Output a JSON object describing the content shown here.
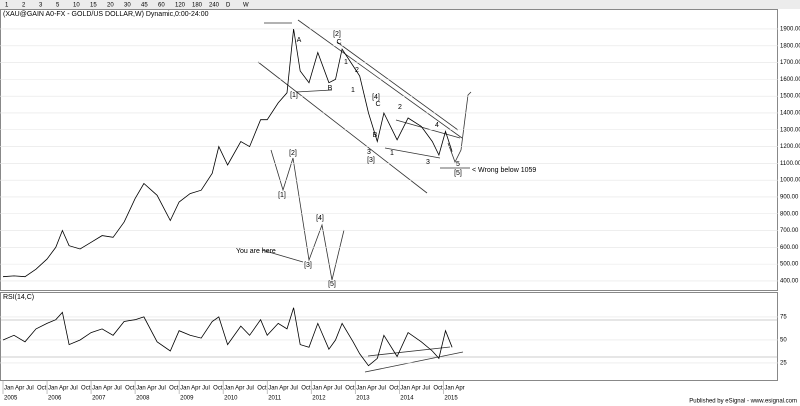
{
  "toolbar": [
    "1",
    "2",
    "3",
    "5",
    "10",
    "15",
    "20",
    "30",
    "45",
    "60",
    "120",
    "180",
    "240",
    "D",
    "W"
  ],
  "annotations": [
    "A",
    "[1]",
    "B",
    "[2]",
    "C",
    "1",
    "2",
    "1",
    "[4]",
    "C",
    "B",
    "3",
    "[3]",
    "1",
    "2",
    "3",
    "4",
    "5",
    "[5]",
    "< Wrong below 1059",
    "[1]",
    "[2]",
    "[4]",
    "[3]",
    "[5]",
    "You are here"
  ],
  "footer": "Published by eSignal - www.esignal.com",
  "chart_data": [
    {
      "type": "line",
      "title": "(XAU@GAIN A0-FX - GOLD/US DOLLAR,W) Dynamic,0:00-24:00",
      "color": "#000000",
      "x": [
        2005.0,
        2005.25,
        2005.5,
        2005.75,
        2006.0,
        2006.2,
        2006.35,
        2006.5,
        2006.75,
        2007.0,
        2007.25,
        2007.5,
        2007.75,
        2008.0,
        2008.2,
        2008.5,
        2008.8,
        2009.0,
        2009.25,
        2009.5,
        2009.75,
        2009.9,
        2010.1,
        2010.4,
        2010.6,
        2010.85,
        2011.0,
        2011.25,
        2011.45,
        2011.6,
        2011.75,
        2011.95,
        2012.15,
        2012.4,
        2012.55,
        2012.7,
        2012.95,
        2013.1,
        2013.3,
        2013.5,
        2013.65,
        2013.95,
        2014.2,
        2014.5,
        2014.75,
        2014.9,
        2015.05,
        2015.2
      ],
      "values": [
        425,
        430,
        425,
        470,
        530,
        600,
        700,
        610,
        590,
        630,
        670,
        660,
        750,
        890,
        980,
        910,
        760,
        870,
        920,
        940,
        1040,
        1200,
        1090,
        1230,
        1200,
        1360,
        1360,
        1460,
        1520,
        1900,
        1650,
        1580,
        1760,
        1580,
        1600,
        1780,
        1680,
        1620,
        1400,
        1230,
        1400,
        1240,
        1370,
        1320,
        1230,
        1150,
        1290,
        1170
      ],
      "xlim": [
        2005,
        2022.6
      ],
      "ylim": [
        346,
        2013
      ],
      "yticks": [
        {
          "value": 400,
          "label": "400.00"
        },
        {
          "value": 500,
          "label": "500.00"
        },
        {
          "value": 600,
          "label": "600.00"
        },
        {
          "value": 700,
          "label": "700.00"
        },
        {
          "value": 800,
          "label": "800.00"
        },
        {
          "value": 900,
          "label": "900.00"
        },
        {
          "value": 1000,
          "label": "1000.00"
        },
        {
          "value": 1100,
          "label": "1100.00"
        },
        {
          "value": 1200,
          "label": "1200.00"
        },
        {
          "value": 1300,
          "label": "1300.00"
        },
        {
          "value": 1400,
          "label": "1400.00"
        },
        {
          "value": 1500,
          "label": "1500.00"
        },
        {
          "value": 1600,
          "label": "1600.00"
        },
        {
          "value": 1700,
          "label": "1700.00"
        },
        {
          "value": 1800,
          "label": "1800.00"
        },
        {
          "value": 1900,
          "label": "1900.00"
        }
      ]
    },
    {
      "type": "line",
      "title": "RSI(14,C)",
      "color": "#000000",
      "x": [
        2005.0,
        2005.25,
        2005.5,
        2005.75,
        2006.0,
        2006.2,
        2006.35,
        2006.5,
        2006.75,
        2007.0,
        2007.25,
        2007.5,
        2007.75,
        2008.0,
        2008.2,
        2008.5,
        2008.8,
        2009.0,
        2009.25,
        2009.5,
        2009.75,
        2009.9,
        2010.1,
        2010.4,
        2010.6,
        2010.85,
        2011.0,
        2011.25,
        2011.45,
        2011.6,
        2011.75,
        2011.95,
        2012.15,
        2012.4,
        2012.55,
        2012.7,
        2012.95,
        2013.1,
        2013.3,
        2013.5,
        2013.65,
        2013.95,
        2014.2,
        2014.5,
        2014.75,
        2014.9,
        2015.05,
        2015.2
      ],
      "values": [
        50,
        55,
        48,
        62,
        68,
        72,
        80,
        45,
        50,
        58,
        62,
        55,
        70,
        72,
        75,
        48,
        38,
        60,
        55,
        52,
        70,
        75,
        45,
        65,
        55,
        72,
        55,
        68,
        62,
        85,
        45,
        42,
        68,
        40,
        50,
        68,
        48,
        35,
        22,
        30,
        55,
        32,
        58,
        48,
        38,
        30,
        60,
        42
      ],
      "xlim": [
        2005,
        2022.6
      ],
      "ylim": [
        6.5,
        101
      ],
      "yticks": [
        25,
        50,
        75
      ],
      "xticks": [
        {
          "value": 2005,
          "label": "2005"
        },
        {
          "value": 2006,
          "label": "2006"
        },
        {
          "value": 2007,
          "label": "2007"
        },
        {
          "value": 2008,
          "label": "2008"
        },
        {
          "value": 2009,
          "label": "2009"
        },
        {
          "value": 2010,
          "label": "2010"
        },
        {
          "value": 2011,
          "label": "2011"
        },
        {
          "value": 2012,
          "label": "2012"
        },
        {
          "value": 2013,
          "label": "2013"
        },
        {
          "value": 2014,
          "label": "2014"
        },
        {
          "value": 2015,
          "label": "2015"
        }
      ],
      "month_ticks": [
        {
          "value": 2005,
          "label": "Jan"
        },
        {
          "value": 2005.25,
          "label": "Apr"
        },
        {
          "value": 2005.5,
          "label": "Jul"
        },
        {
          "value": 2005.75,
          "label": "Oct"
        },
        {
          "value": 2006,
          "label": "Jan"
        },
        {
          "value": 2006.25,
          "label": "Apr"
        },
        {
          "value": 2006.5,
          "label": "Jul"
        },
        {
          "value": 2006.75,
          "label": "Oct"
        },
        {
          "value": 2007,
          "label": "Jan"
        },
        {
          "value": 2007.25,
          "label": "Apr"
        },
        {
          "value": 2007.5,
          "label": "Jul"
        },
        {
          "value": 2007.75,
          "label": "Oct"
        },
        {
          "value": 2008,
          "label": "Jan"
        },
        {
          "value": 2008.25,
          "label": "Apr"
        },
        {
          "value": 2008.5,
          "label": "Jul"
        },
        {
          "value": 2008.75,
          "label": "Oct"
        },
        {
          "value": 2009,
          "label": "Jan"
        },
        {
          "value": 2009.25,
          "label": "Apr"
        },
        {
          "value": 2009.5,
          "label": "Jul"
        },
        {
          "value": 2009.75,
          "label": "Oct"
        },
        {
          "value": 2010,
          "label": "Jan"
        },
        {
          "value": 2010.25,
          "label": "Apr"
        },
        {
          "value": 2010.5,
          "label": "Jul"
        },
        {
          "value": 2010.75,
          "label": "Oct"
        },
        {
          "value": 2011,
          "label": "Jan"
        },
        {
          "value": 2011.25,
          "label": "Apr"
        },
        {
          "value": 2011.5,
          "label": "Jul"
        },
        {
          "value": 2011.75,
          "label": "Oct"
        },
        {
          "value": 2012,
          "label": "Jan"
        },
        {
          "value": 2012.25,
          "label": "Apr"
        },
        {
          "value": 2012.5,
          "label": "Jul"
        },
        {
          "value": 2012.75,
          "label": "Oct"
        },
        {
          "value": 2013,
          "label": "Jan"
        },
        {
          "value": 2013.25,
          "label": "Apr"
        },
        {
          "value": 2013.5,
          "label": "Jul"
        },
        {
          "value": 2013.75,
          "label": "Oct"
        },
        {
          "value": 2014,
          "label": "Jan"
        },
        {
          "value": 2014.25,
          "label": "Apr"
        },
        {
          "value": 2014.5,
          "label": "Jul"
        },
        {
          "value": 2014.75,
          "label": "Oct"
        },
        {
          "value": 2015,
          "label": "Jan"
        },
        {
          "value": 2015.25,
          "label": "Apr"
        }
      ]
    }
  ]
}
